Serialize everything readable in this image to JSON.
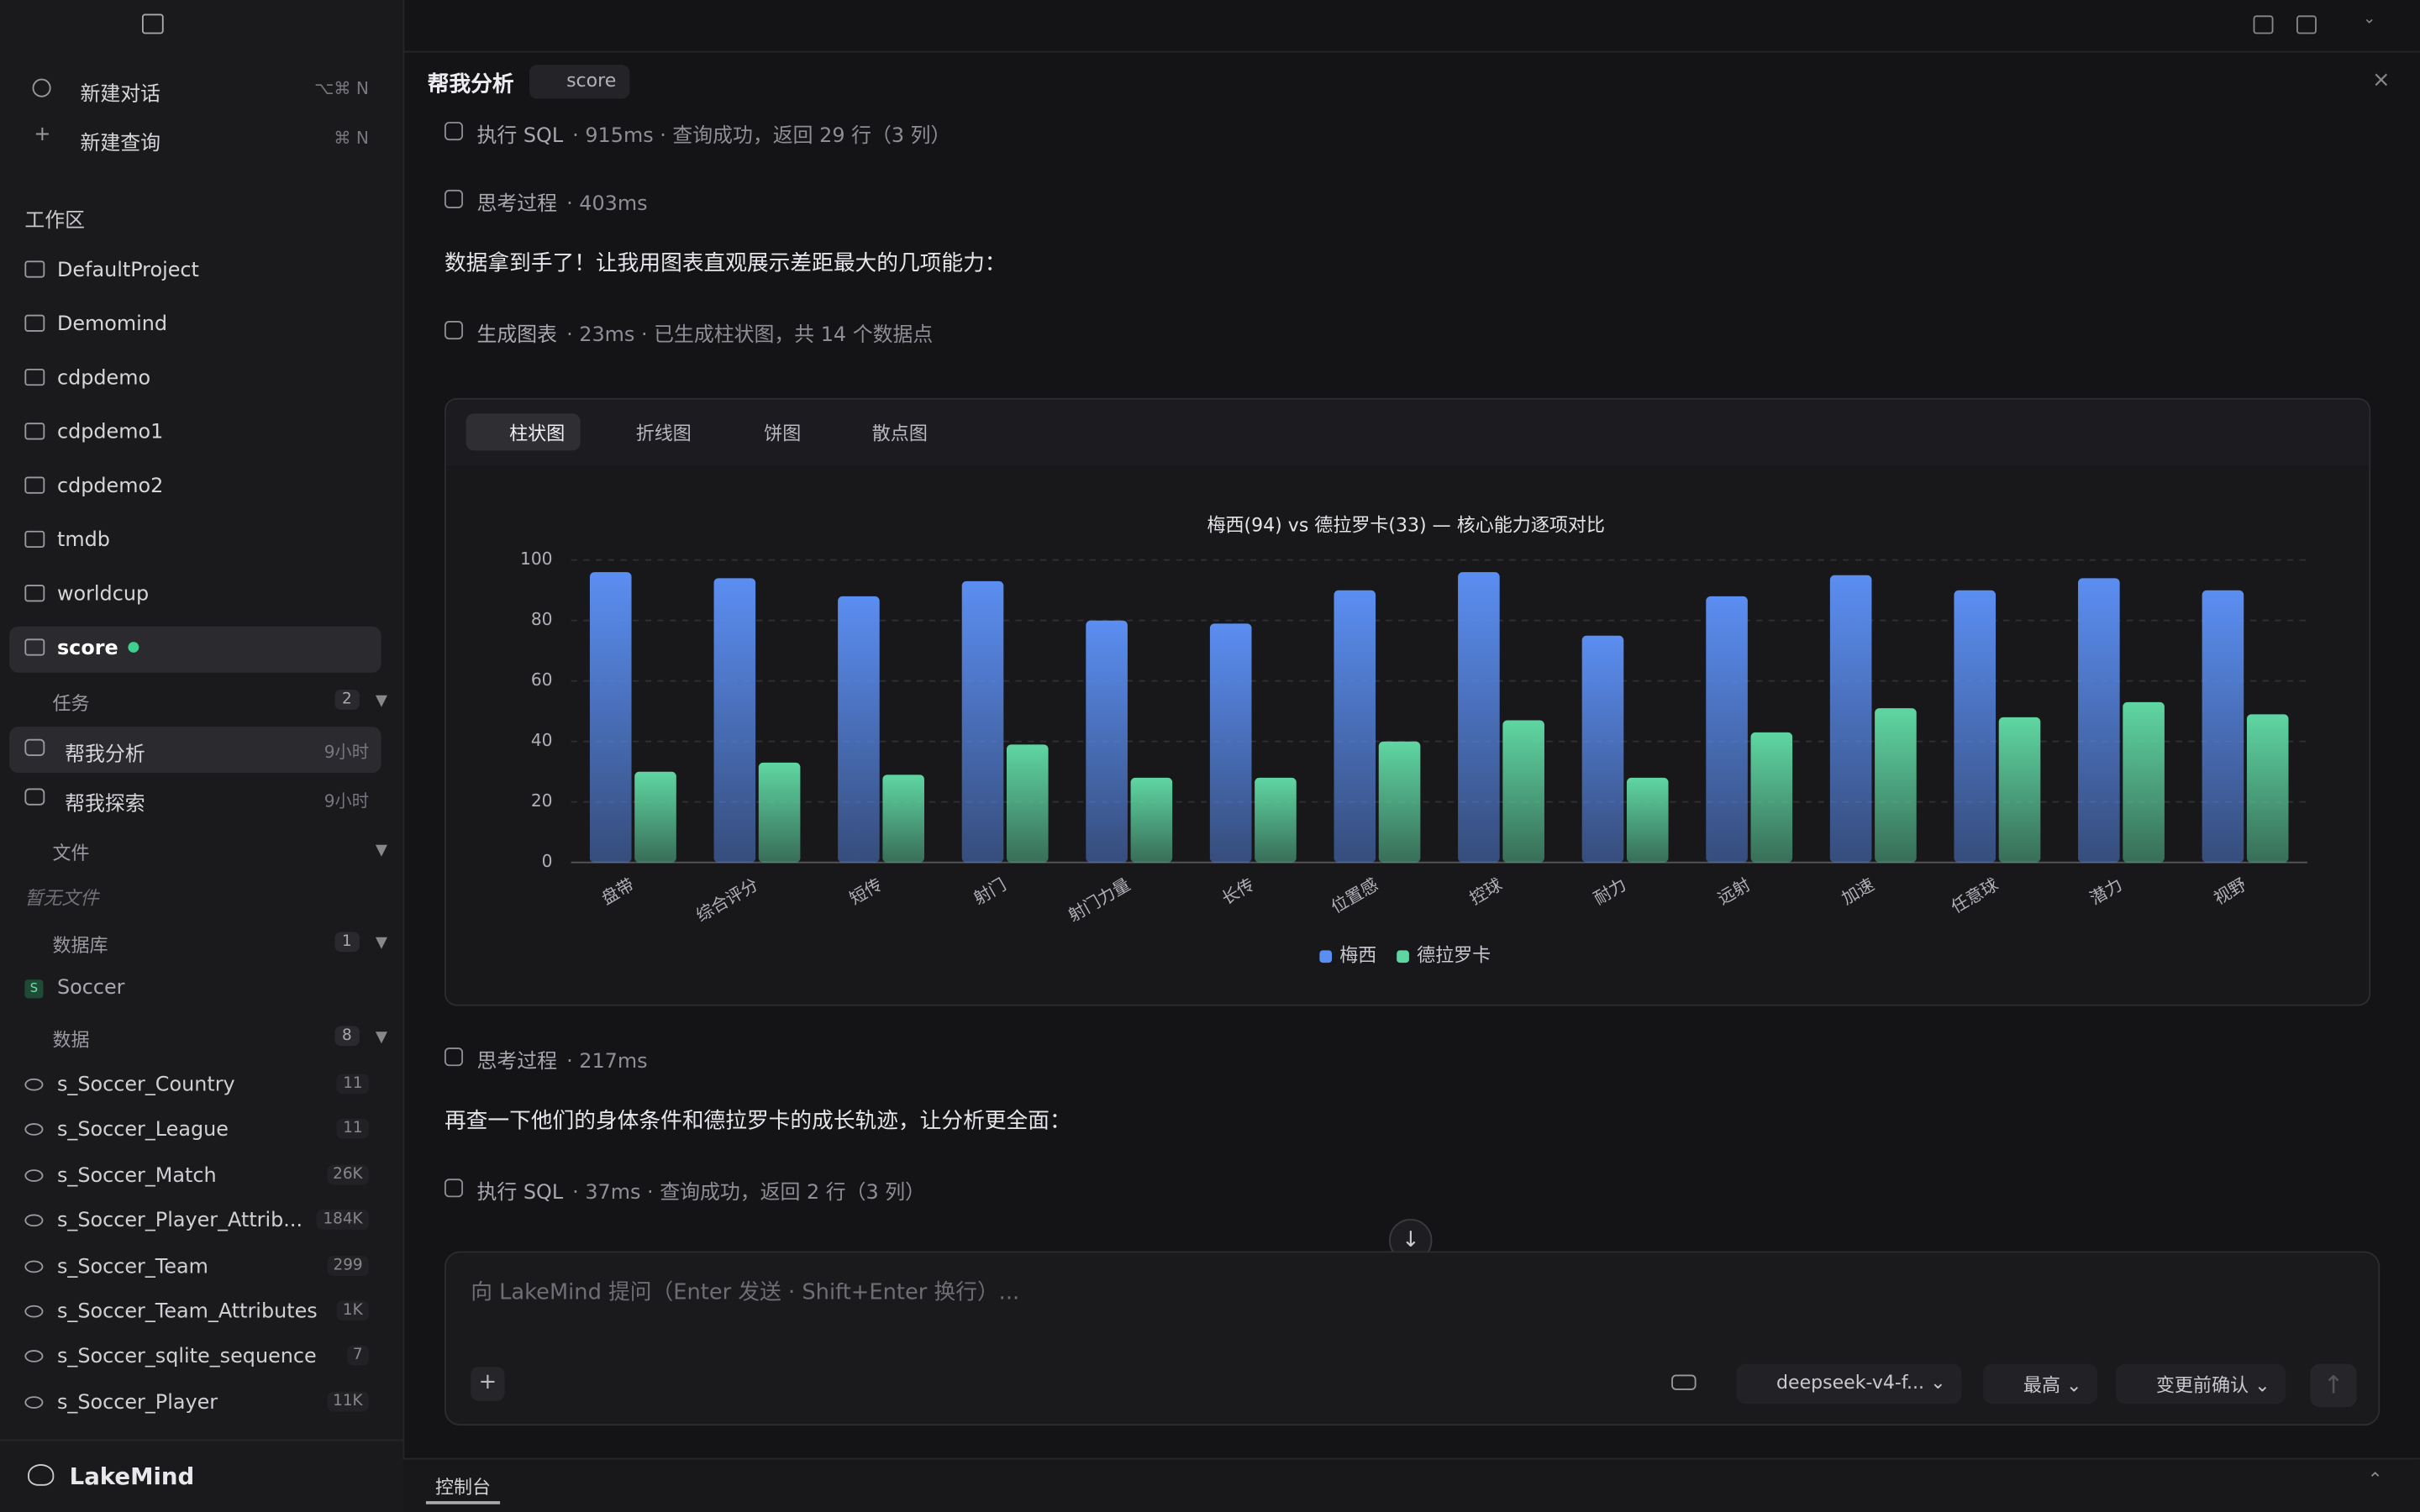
{
  "sidebar": {
    "new_chat": "新建对话",
    "new_chat_shortcut": "⌥⌘ N",
    "new_query": "新建查询",
    "new_query_shortcut": "⌘ N",
    "workspace": "工作区",
    "projects": [
      "DefaultProject",
      "Demomind",
      "cdpdemo",
      "cdpdemo1",
      "cdpdemo2",
      "tmdb",
      "worldcup",
      "score"
    ],
    "tasks": {
      "label": "任务",
      "count": "2",
      "items": [
        {
          "name": "帮我分析",
          "time": "9小时"
        },
        {
          "name": "帮我探索",
          "time": "9小时"
        }
      ]
    },
    "files": {
      "label": "文件",
      "empty": "暂无文件"
    },
    "databases": {
      "label": "数据库",
      "count": "1",
      "items": [
        {
          "badge": "S",
          "name": "Soccer"
        }
      ]
    },
    "data": {
      "label": "数据",
      "count": "8",
      "items": [
        {
          "name": "s_Soccer_Country",
          "count": "11"
        },
        {
          "name": "s_Soccer_League",
          "count": "11"
        },
        {
          "name": "s_Soccer_Match",
          "count": "26K"
        },
        {
          "name": "s_Soccer_Player_Attrib...",
          "count": "184K"
        },
        {
          "name": "s_Soccer_Team",
          "count": "299"
        },
        {
          "name": "s_Soccer_Team_Attributes",
          "count": "1K"
        },
        {
          "name": "s_Soccer_sqlite_sequence",
          "count": "7"
        },
        {
          "name": "s_Soccer_Player",
          "count": "11K"
        }
      ]
    },
    "brand": "LakeMind"
  },
  "header": {
    "title": "帮我分析",
    "tag": "score",
    "close": "×"
  },
  "messages": [
    {
      "label": "执行 SQL",
      "meta": "· 915ms · 查询成功，返回 29 行（3 列）"
    },
    {
      "label": "思考过程",
      "meta": "· 403ms"
    },
    {
      "text": "数据拿到手了！让我用图表直观展示差距最大的几项能力："
    },
    {
      "label": "生成图表",
      "meta": "· 23ms · 已生成柱状图，共 14 个数据点"
    },
    {
      "label": "思考过程",
      "meta": "· 217ms"
    },
    {
      "text": "再查一下他们的身体条件和德拉罗卡的成长轨迹，让分析更全面："
    },
    {
      "label": "执行 SQL",
      "meta": "· 37ms · 查询成功，返回 2 行（3 列）"
    }
  ],
  "chart_tabs": [
    "柱状图",
    "折线图",
    "饼图",
    "散点图"
  ],
  "chart_data": {
    "type": "bar",
    "title": "梅西(94) vs 德拉罗卡(33) — 核心能力逐项对比",
    "categories": [
      "盘带",
      "综合评分",
      "短传",
      "射门",
      "射门力量",
      "长传",
      "位置感",
      "控球",
      "耐力",
      "远射",
      "加速",
      "任意球",
      "潜力",
      "视野"
    ],
    "series": [
      {
        "name": "梅西",
        "color": "#5b8ef2",
        "values": [
          96,
          94,
          88,
          93,
          80,
          79,
          90,
          96,
          75,
          88,
          95,
          90,
          94,
          90
        ]
      },
      {
        "name": "德拉罗卡",
        "color": "#5fd6a2",
        "values": [
          30,
          33,
          29,
          39,
          28,
          28,
          40,
          47,
          28,
          43,
          51,
          48,
          53,
          49
        ]
      }
    ],
    "ylim": [
      0,
      100
    ],
    "yticks": [
      0,
      20,
      40,
      60,
      80,
      100
    ],
    "grid": true,
    "legend": "bottom"
  },
  "input": {
    "placeholder": "向 LakeMind 提问（Enter 发送 · Shift+Enter 换行）...",
    "add": "+",
    "model": "deepseek-v4-f...",
    "level": "最高",
    "confirm": "变更前确认"
  },
  "console": "控制台"
}
